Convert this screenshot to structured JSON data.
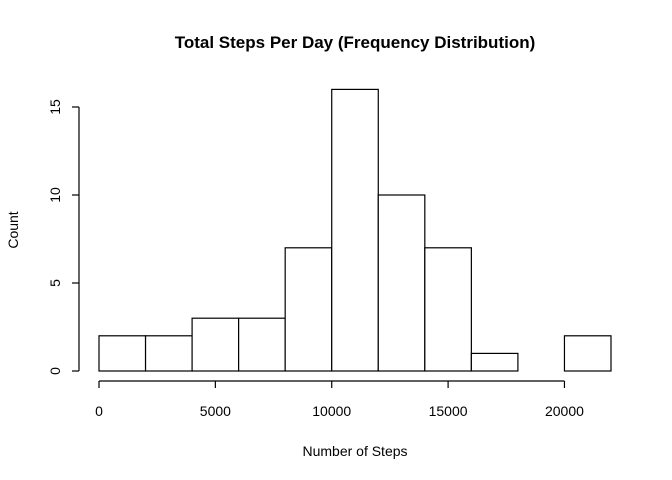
{
  "chart_data": {
    "type": "bar",
    "title": "Total Steps Per Day (Frequency Distribution)",
    "xlabel": "Number of Steps",
    "ylabel": "Count",
    "bins": [
      {
        "start": 0,
        "end": 2000,
        "count": 2
      },
      {
        "start": 2000,
        "end": 4000,
        "count": 2
      },
      {
        "start": 4000,
        "end": 6000,
        "count": 3
      },
      {
        "start": 6000,
        "end": 8000,
        "count": 3
      },
      {
        "start": 8000,
        "end": 10000,
        "count": 7
      },
      {
        "start": 10000,
        "end": 12000,
        "count": 16
      },
      {
        "start": 12000,
        "end": 14000,
        "count": 10
      },
      {
        "start": 14000,
        "end": 16000,
        "count": 7
      },
      {
        "start": 16000,
        "end": 18000,
        "count": 1
      },
      {
        "start": 18000,
        "end": 20000,
        "count": 0
      },
      {
        "start": 20000,
        "end": 22000,
        "count": 2
      }
    ],
    "x_ticks": [
      0,
      5000,
      10000,
      15000,
      20000
    ],
    "y_ticks": [
      0,
      5,
      10,
      15
    ],
    "xlim": [
      0,
      22000
    ],
    "ylim": [
      0,
      16
    ],
    "grid": false,
    "bar_fill": "#ffffff",
    "bar_stroke": "#000000"
  }
}
